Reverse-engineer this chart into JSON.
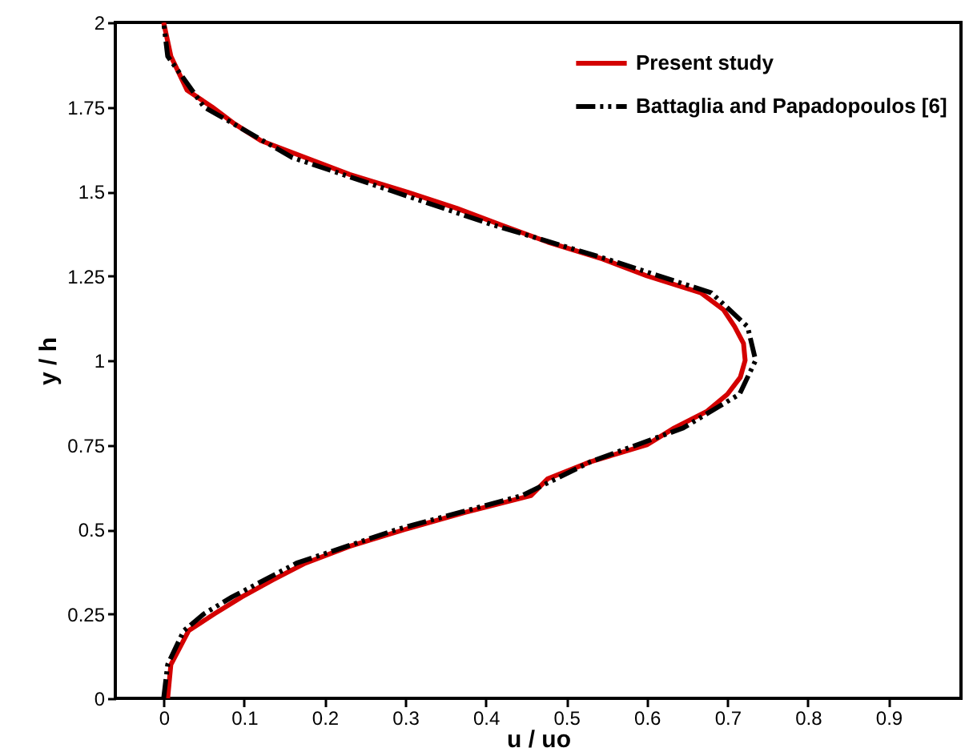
{
  "chart_data": {
    "type": "line",
    "xlabel": "u / uo",
    "ylabel": "y / h",
    "xlim": [
      -0.06,
      0.99
    ],
    "ylim": [
      0,
      2
    ],
    "xticks": [
      0,
      0.1,
      0.2,
      0.3,
      0.4,
      0.5,
      0.6,
      0.7,
      0.8,
      0.9
    ],
    "yticks": [
      0,
      0.25,
      0.5,
      0.75,
      1,
      1.25,
      1.5,
      1.75,
      2
    ],
    "grid": false,
    "legend": "top right",
    "marker": "none",
    "series": [
      {
        "name": "Present study",
        "color": "#d40000",
        "line_style": "solid",
        "x": [
          0.005,
          0.009,
          0.031,
          0.063,
          0.097,
          0.135,
          0.176,
          0.231,
          0.3,
          0.374,
          0.456,
          0.477,
          0.53,
          0.6,
          0.634,
          0.675,
          0.7,
          0.716,
          0.722,
          0.72,
          0.709,
          0.695,
          0.667,
          0.6,
          0.545,
          0.477,
          0.42,
          0.364,
          0.3,
          0.231,
          0.176,
          0.121,
          0.088,
          0.06,
          0.029,
          0.009,
          0.0
        ],
        "values": [
          0,
          0.1,
          0.2,
          0.25,
          0.3,
          0.35,
          0.4,
          0.45,
          0.5,
          0.55,
          0.6,
          0.65,
          0.7,
          0.75,
          0.8,
          0.85,
          0.9,
          0.95,
          1.0,
          1.05,
          1.1,
          1.15,
          1.2,
          1.25,
          1.3,
          1.35,
          1.4,
          1.45,
          1.5,
          1.55,
          1.6,
          1.65,
          1.7,
          1.75,
          1.8,
          1.9,
          2.0
        ]
      },
      {
        "name": "Battaglia and Papadopoulos [6]",
        "color": "#000000",
        "line_style": "dashed",
        "x": [
          0.0,
          0.005,
          0.025,
          0.05,
          0.085,
          0.165,
          0.29,
          0.445,
          0.53,
          0.645,
          0.715,
          0.735,
          0.725,
          0.68,
          0.55,
          0.41,
          0.285,
          0.16,
          0.05,
          0.005,
          0.0
        ],
        "values": [
          0,
          0.1,
          0.2,
          0.25,
          0.3,
          0.4,
          0.5,
          0.6,
          0.7,
          0.8,
          0.9,
          1.0,
          1.1,
          1.2,
          1.3,
          1.4,
          1.5,
          1.6,
          1.75,
          1.9,
          2.0
        ]
      }
    ]
  }
}
